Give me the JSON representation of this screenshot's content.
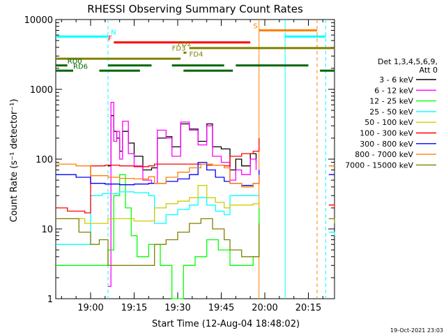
{
  "chart_data": {
    "type": "line",
    "title": "RHESSI Observing Summary Count Rates",
    "xlabel": "Start Time (12-Aug-04 18:48:02)",
    "ylabel": "Count Rate (s⁻¹ detector⁻¹)",
    "y_scale": "log",
    "ylim": [
      1,
      10000
    ],
    "xlim": [
      "18:48",
      "20:24"
    ],
    "x_ticks": [
      "19:00",
      "19:15",
      "19:30",
      "19:45",
      "20:00",
      "20:15"
    ],
    "y_ticks": [
      "1",
      "10",
      "100",
      "1000",
      "10000"
    ],
    "legend_title": [
      "Det 1,3,4,5,6,9,",
      "Att 0"
    ],
    "legend_position": "right",
    "timestamp": "19-Oct-2021 23:03",
    "series": [
      {
        "name": "3 - 6 keV",
        "color": "#000000",
        "x": [
          "19:06",
          "19:07",
          "19:08",
          "19:09",
          "19:10",
          "19:11",
          "19:13",
          "19:15",
          "19:18",
          "19:21",
          "19:23",
          "19:26",
          "19:28",
          "19:31",
          "19:34",
          "19:37",
          "19:40",
          "19:42",
          "19:45",
          "19:48",
          "19:50",
          "19:52",
          "19:55",
          "19:57"
        ],
        "values": [
          80,
          420,
          250,
          200,
          130,
          250,
          170,
          110,
          70,
          75,
          200,
          210,
          150,
          320,
          270,
          180,
          320,
          150,
          140,
          70,
          100,
          80,
          120,
          90
        ]
      },
      {
        "name": "6 - 12 keV",
        "color": "#ff00ff",
        "x": [
          "19:06",
          "19:07",
          "19:08",
          "19:09",
          "19:10",
          "19:11",
          "19:13",
          "19:15",
          "19:18",
          "19:21",
          "19:23",
          "19:26",
          "19:28",
          "19:31",
          "19:34",
          "19:37",
          "19:40",
          "19:42",
          "19:45",
          "19:48",
          "19:50",
          "19:52",
          "19:55",
          "19:57"
        ],
        "values": [
          1.5,
          650,
          180,
          250,
          100,
          350,
          120,
          80,
          50,
          45,
          260,
          200,
          110,
          340,
          260,
          160,
          300,
          110,
          90,
          50,
          70,
          60,
          100,
          70
        ]
      },
      {
        "name": "12 - 25 keV",
        "color": "#00ff00",
        "x": [
          "18:48",
          "19:00",
          "19:06",
          "19:08",
          "19:10",
          "19:12",
          "19:14",
          "19:16",
          "19:20",
          "19:24",
          "19:28",
          "19:32",
          "19:36",
          "19:40",
          "19:44",
          "19:48",
          "19:52",
          "19:56",
          "19:58"
        ],
        "values": [
          3,
          3,
          5,
          30,
          60,
          20,
          8,
          4,
          6,
          3,
          1,
          3,
          4,
          7,
          5,
          3,
          3,
          4,
          20
        ]
      },
      {
        "name": "25 - 50 keV",
        "color": "#00ffff",
        "x": [
          "18:48",
          "18:58",
          "19:00",
          "19:04",
          "19:06",
          "19:10",
          "19:15",
          "19:20",
          "19:22",
          "19:26",
          "19:30",
          "19:34",
          "19:37",
          "19:40",
          "19:43",
          "19:46",
          "19:48",
          "19:52",
          "19:56",
          "19:58"
        ],
        "values": [
          6,
          6,
          30,
          32,
          32,
          34,
          33,
          30,
          12,
          16,
          19,
          22,
          28,
          22,
          18,
          16,
          30,
          30,
          30,
          30
        ]
      },
      {
        "name": "50 - 100 keV",
        "color": "#cccc00",
        "x": [
          "18:48",
          "18:58",
          "19:00",
          "19:06",
          "19:10",
          "19:15",
          "19:20",
          "19:22",
          "19:26",
          "19:30",
          "19:34",
          "19:37",
          "19:40",
          "19:43",
          "19:46",
          "19:48",
          "19:52",
          "19:56",
          "19:58"
        ],
        "values": [
          14,
          12,
          12,
          14,
          14,
          13,
          13,
          20,
          23,
          25,
          28,
          42,
          28,
          24,
          20,
          22,
          22,
          23,
          26
        ]
      },
      {
        "name": "100 - 300 keV",
        "color": "#ff0000",
        "x": [
          "18:48",
          "18:52",
          "18:58",
          "19:00",
          "19:05",
          "19:10",
          "19:15",
          "19:20",
          "19:22",
          "19:30",
          "19:40",
          "19:46",
          "19:48",
          "19:52",
          "19:56",
          "19:58"
        ],
        "values": [
          20,
          18,
          17,
          80,
          82,
          80,
          78,
          80,
          85,
          85,
          82,
          80,
          110,
          120,
          130,
          200
        ]
      },
      {
        "name": "300 - 800 keV",
        "color": "#0000ff",
        "x": [
          "18:48",
          "18:55",
          "19:00",
          "19:05",
          "19:10",
          "19:15",
          "19:20",
          "19:22",
          "19:26",
          "19:30",
          "19:34",
          "19:37",
          "19:40",
          "19:43",
          "19:46",
          "19:48",
          "19:52",
          "19:56",
          "19:58"
        ],
        "values": [
          60,
          55,
          45,
          44,
          43,
          44,
          45,
          45,
          48,
          52,
          60,
          90,
          70,
          55,
          48,
          45,
          42,
          45,
          70
        ]
      },
      {
        "name": "800 - 7000 keV",
        "color": "#ff8000",
        "x": [
          "18:48",
          "18:55",
          "19:00",
          "19:06",
          "19:10",
          "19:15",
          "19:20",
          "19:22",
          "19:26",
          "19:30",
          "19:34",
          "19:38",
          "19:42",
          "19:46",
          "19:48",
          "19:52",
          "19:56",
          "19:58"
        ],
        "values": [
          85,
          80,
          58,
          55,
          53,
          52,
          56,
          45,
          55,
          65,
          75,
          85,
          82,
          75,
          45,
          40,
          45,
          60
        ]
      },
      {
        "name": "7000 - 15000 keV",
        "color": "#808000",
        "x": [
          "18:48",
          "18:56",
          "19:00",
          "19:03",
          "19:06",
          "19:10",
          "19:15",
          "19:20",
          "19:22",
          "19:26",
          "19:30",
          "19:34",
          "19:38",
          "19:42",
          "19:46",
          "19:48",
          "19:52",
          "19:56",
          "19:58"
        ],
        "values": [
          14,
          9,
          6,
          7,
          3,
          3,
          3,
          3,
          6,
          7,
          9,
          12,
          14,
          10,
          7,
          5,
          4,
          4,
          12
        ]
      }
    ],
    "right_segments": [
      {
        "name": "100 - 300 keV",
        "x": [
          "20:22",
          "20:24"
        ],
        "values": [
          22,
          20
        ]
      },
      {
        "name": "300 - 800 keV",
        "x": [
          "20:22",
          "20:24"
        ],
        "values": [
          60,
          60
        ]
      },
      {
        "name": "800 - 7000 keV",
        "x": [
          "20:22",
          "20:24"
        ],
        "values": [
          80,
          80
        ]
      },
      {
        "name": "25 - 50 keV",
        "x": [
          "20:22",
          "20:24"
        ],
        "values": [
          9,
          8
        ]
      },
      {
        "name": "7000 - 15000 keV",
        "x": [
          "20:22",
          "20:24"
        ],
        "values": [
          14,
          12
        ]
      }
    ],
    "flag_bars": [
      {
        "label": "N",
        "color": "#00ffff",
        "y": 5700,
        "segments": [
          [
            "18:48",
            "19:06"
          ],
          [
            "20:07",
            "20:21"
          ]
        ]
      },
      {
        "label": "S",
        "color": "#ff8000",
        "y": 7000,
        "segments": [
          [
            "19:58",
            "20:18"
          ]
        ]
      },
      {
        "label": "F",
        "color": "#ff0000",
        "y": 4700,
        "segments": [
          [
            "19:08",
            "19:55"
          ]
        ]
      },
      {
        "label": "FD2",
        "color": "#808000",
        "y": 3900,
        "segments": [
          [
            "19:34",
            "20:24"
          ]
        ]
      },
      {
        "label": "FD3",
        "color": "#808000",
        "y": 3350,
        "segments": [
          [
            "19:32",
            "19:33"
          ]
        ]
      },
      {
        "label": "FD4",
        "color": "#808000",
        "y": 2750,
        "segments": [
          [
            "18:48",
            "19:31"
          ]
        ]
      },
      {
        "label": "RD0",
        "color": "#006600",
        "y": 2200,
        "segments": [
          [
            "18:48",
            "18:52"
          ],
          [
            "19:06",
            "19:21"
          ],
          [
            "19:28",
            "19:46"
          ],
          [
            "19:50",
            "20:15"
          ]
        ]
      },
      {
        "label": "RD6",
        "color": "#006600",
        "y": 1850,
        "segments": [
          [
            "18:48",
            "18:54"
          ],
          [
            "19:03",
            "19:17"
          ],
          [
            "19:32",
            "19:49"
          ],
          [
            "20:19",
            "20:24"
          ]
        ]
      }
    ],
    "flag_label_positions": {
      "N": "19:07",
      "S": "19:56",
      "F": "19:06",
      "FD2": "19:30",
      "FD3": "19:28",
      "FD4": "19:34",
      "RD0": "18:52",
      "RD6": "18:54"
    },
    "vlines": [
      {
        "x": "19:06",
        "color": "#00ffff",
        "style": "dashed"
      },
      {
        "x": "19:58",
        "color": "#ff8000",
        "style": "solid"
      },
      {
        "x": "20:07",
        "color": "#00ffff",
        "style": "solid"
      },
      {
        "x": "20:18",
        "color": "#ff8000",
        "style": "dashed"
      },
      {
        "x": "20:21",
        "color": "#00ffff",
        "style": "dashed"
      }
    ],
    "grid": false
  }
}
